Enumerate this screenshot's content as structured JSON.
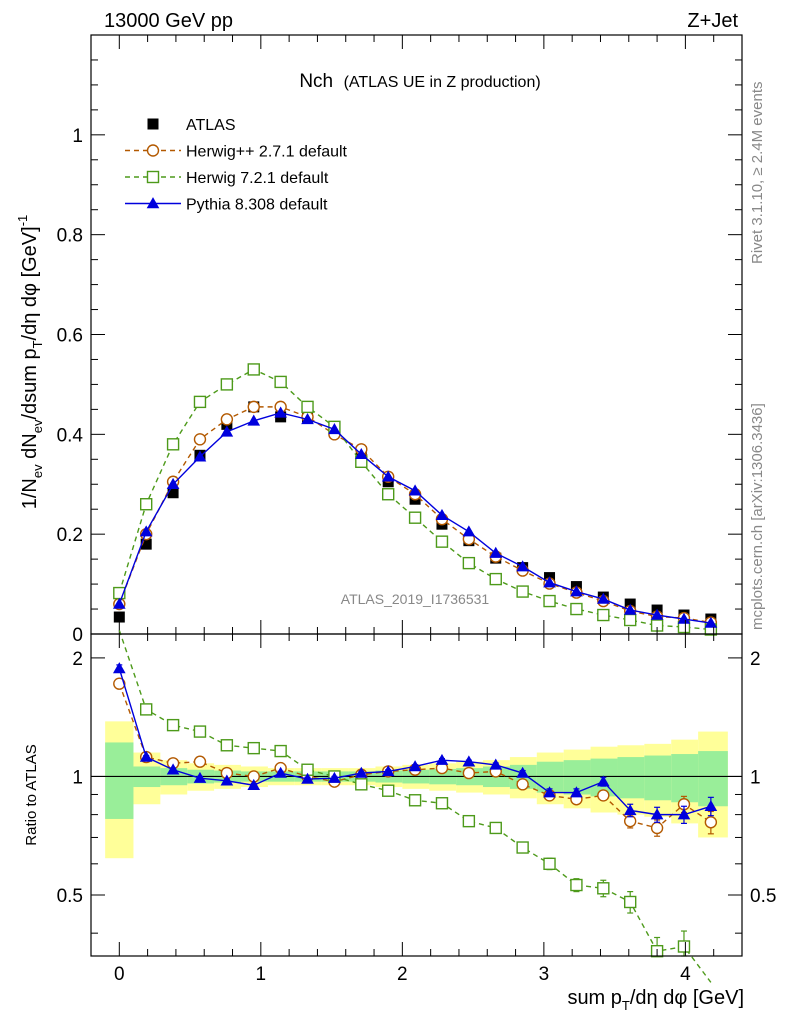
{
  "header": {
    "left": "13000 GeV pp",
    "right": "Z+Jet"
  },
  "side_labels": {
    "rivet": "Rivet 3.1.10, ≥ 2.4M events",
    "mcplots": "mcplots.cern.ch [arXiv:1306.3436]"
  },
  "chart_data": {
    "type": "line",
    "title": "Nch",
    "subtitle": "(ATLAS UE in Z production)",
    "watermark": "ATLAS_2019_I1736531",
    "xlabel": "sum p_T/dη dφ [GeV]",
    "xlabel_parts": {
      "pre": "sum p",
      "sub": "T",
      "post": "/dη dφ [GeV]"
    },
    "ylabel": "1/N_ev dN_ev/dsum p_T/dη dφ [GeV]^-1",
    "ylabel_parts": {
      "a": "1/N",
      "a_sub": "ev",
      "b": " dN",
      "b_sub": "ev",
      "c": "/dsum p",
      "c_sub": "T",
      "d": "/dη dφ  [GeV]",
      "sup": "-1"
    },
    "ratio_ylabel": "Ratio to ATLAS",
    "xlim": [
      -0.2,
      4.4
    ],
    "ylim": [
      0,
      1.2
    ],
    "ratio_ylim": [
      0.35,
      2.3
    ],
    "x_ticks": [
      0,
      1,
      2,
      3,
      4
    ],
    "y_ticks": [
      0,
      0.2,
      0.4,
      0.6,
      0.8,
      1
    ],
    "ratio_ticks": [
      0.5,
      1,
      2
    ],
    "x": [
      0.0,
      0.19,
      0.38,
      0.57,
      0.76,
      0.95,
      1.14,
      1.33,
      1.52,
      1.71,
      1.9,
      2.09,
      2.28,
      2.47,
      2.66,
      2.85,
      3.04,
      3.23,
      3.42,
      3.61,
      3.8,
      3.99,
      4.18
    ],
    "bin_edges": [
      -0.1,
      0.1,
      0.29,
      0.48,
      0.67,
      0.86,
      1.05,
      1.24,
      1.43,
      1.62,
      1.81,
      2.0,
      2.19,
      2.38,
      2.57,
      2.76,
      2.95,
      3.14,
      3.33,
      3.52,
      3.71,
      3.9,
      4.09,
      4.3
    ],
    "band_inner": [
      0.22,
      0.06,
      0.05,
      0.04,
      0.035,
      0.03,
      0.03,
      0.03,
      0.03,
      0.03,
      0.035,
      0.04,
      0.045,
      0.05,
      0.06,
      0.07,
      0.09,
      0.1,
      0.11,
      0.12,
      0.13,
      0.14,
      0.16
    ],
    "band_outer": [
      0.38,
      0.15,
      0.1,
      0.08,
      0.07,
      0.06,
      0.05,
      0.05,
      0.05,
      0.05,
      0.06,
      0.07,
      0.08,
      0.09,
      0.1,
      0.12,
      0.15,
      0.17,
      0.19,
      0.2,
      0.21,
      0.24,
      0.3
    ],
    "series": [
      {
        "name": "ATLAS",
        "color": "#000000",
        "marker": "square",
        "line": false,
        "values": [
          0.034,
          0.18,
          0.283,
          0.358,
          0.42,
          0.455,
          0.435,
          0.435,
          0.415,
          0.365,
          0.305,
          0.27,
          0.22,
          0.187,
          0.152,
          0.133,
          0.113,
          0.095,
          0.074,
          0.06,
          0.048,
          0.038,
          0.03
        ]
      },
      {
        "name": "Herwig++ 2.7.1 default",
        "color": "#b35900",
        "marker": "circle",
        "dash": "5,4",
        "values": [
          0.06,
          0.2,
          0.305,
          0.39,
          0.43,
          0.455,
          0.455,
          0.435,
          0.4,
          0.37,
          0.315,
          0.28,
          0.23,
          0.19,
          0.155,
          0.127,
          0.101,
          0.083,
          0.066,
          0.046,
          0.035,
          0.032,
          0.023
        ],
        "ratio": [
          1.72,
          1.12,
          1.08,
          1.09,
          1.02,
          1.0,
          1.05,
          1.0,
          0.97,
          1.01,
          1.03,
          1.04,
          1.05,
          1.02,
          1.03,
          0.955,
          0.895,
          0.875,
          0.895,
          0.77,
          0.74,
          0.85,
          0.765
        ],
        "ratio_err": [
          0.03,
          0.01,
          0.01,
          0.01,
          0.01,
          0.01,
          0.01,
          0.01,
          0.01,
          0.01,
          0.01,
          0.01,
          0.01,
          0.01,
          0.012,
          0.015,
          0.02,
          0.02,
          0.025,
          0.03,
          0.035,
          0.04,
          0.05
        ]
      },
      {
        "name": "Herwig 7.2.1 default",
        "color": "#4d9a1a",
        "marker": "open-square",
        "dash": "5,4",
        "values": [
          0.082,
          0.26,
          0.38,
          0.465,
          0.5,
          0.53,
          0.505,
          0.455,
          0.415,
          0.345,
          0.28,
          0.233,
          0.185,
          0.142,
          0.11,
          0.085,
          0.066,
          0.05,
          0.038,
          0.028,
          0.017,
          0.014,
          0.009
        ],
        "ratio": [
          2.35,
          1.48,
          1.35,
          1.3,
          1.2,
          1.18,
          1.16,
          1.04,
          1.0,
          0.955,
          0.92,
          0.87,
          0.855,
          0.77,
          0.74,
          0.66,
          0.6,
          0.53,
          0.52,
          0.48,
          0.36,
          0.37,
          0.3
        ],
        "ratio_err": [
          0.04,
          0.01,
          0.01,
          0.01,
          0.01,
          0.01,
          0.01,
          0.01,
          0.01,
          0.01,
          0.01,
          0.01,
          0.01,
          0.012,
          0.015,
          0.015,
          0.02,
          0.02,
          0.025,
          0.03,
          0.03,
          0.035,
          0.04
        ]
      },
      {
        "name": "Pythia 8.308 default",
        "color": "#0000dd",
        "marker": "triangle",
        "values": [
          0.06,
          0.205,
          0.3,
          0.355,
          0.405,
          0.427,
          0.443,
          0.43,
          0.41,
          0.36,
          0.315,
          0.287,
          0.238,
          0.205,
          0.162,
          0.135,
          0.103,
          0.085,
          0.07,
          0.048,
          0.038,
          0.03,
          0.022
        ],
        "ratio": [
          1.88,
          1.12,
          1.04,
          0.99,
          0.975,
          0.95,
          1.02,
          0.985,
          0.99,
          1.02,
          1.03,
          1.06,
          1.1,
          1.09,
          1.07,
          1.02,
          0.91,
          0.91,
          0.97,
          0.82,
          0.8,
          0.8,
          0.84
        ],
        "ratio_err": [
          0.04,
          0.01,
          0.01,
          0.01,
          0.01,
          0.01,
          0.01,
          0.01,
          0.01,
          0.01,
          0.01,
          0.01,
          0.01,
          0.01,
          0.012,
          0.015,
          0.02,
          0.02,
          0.025,
          0.03,
          0.035,
          0.04,
          0.045
        ]
      }
    ]
  }
}
